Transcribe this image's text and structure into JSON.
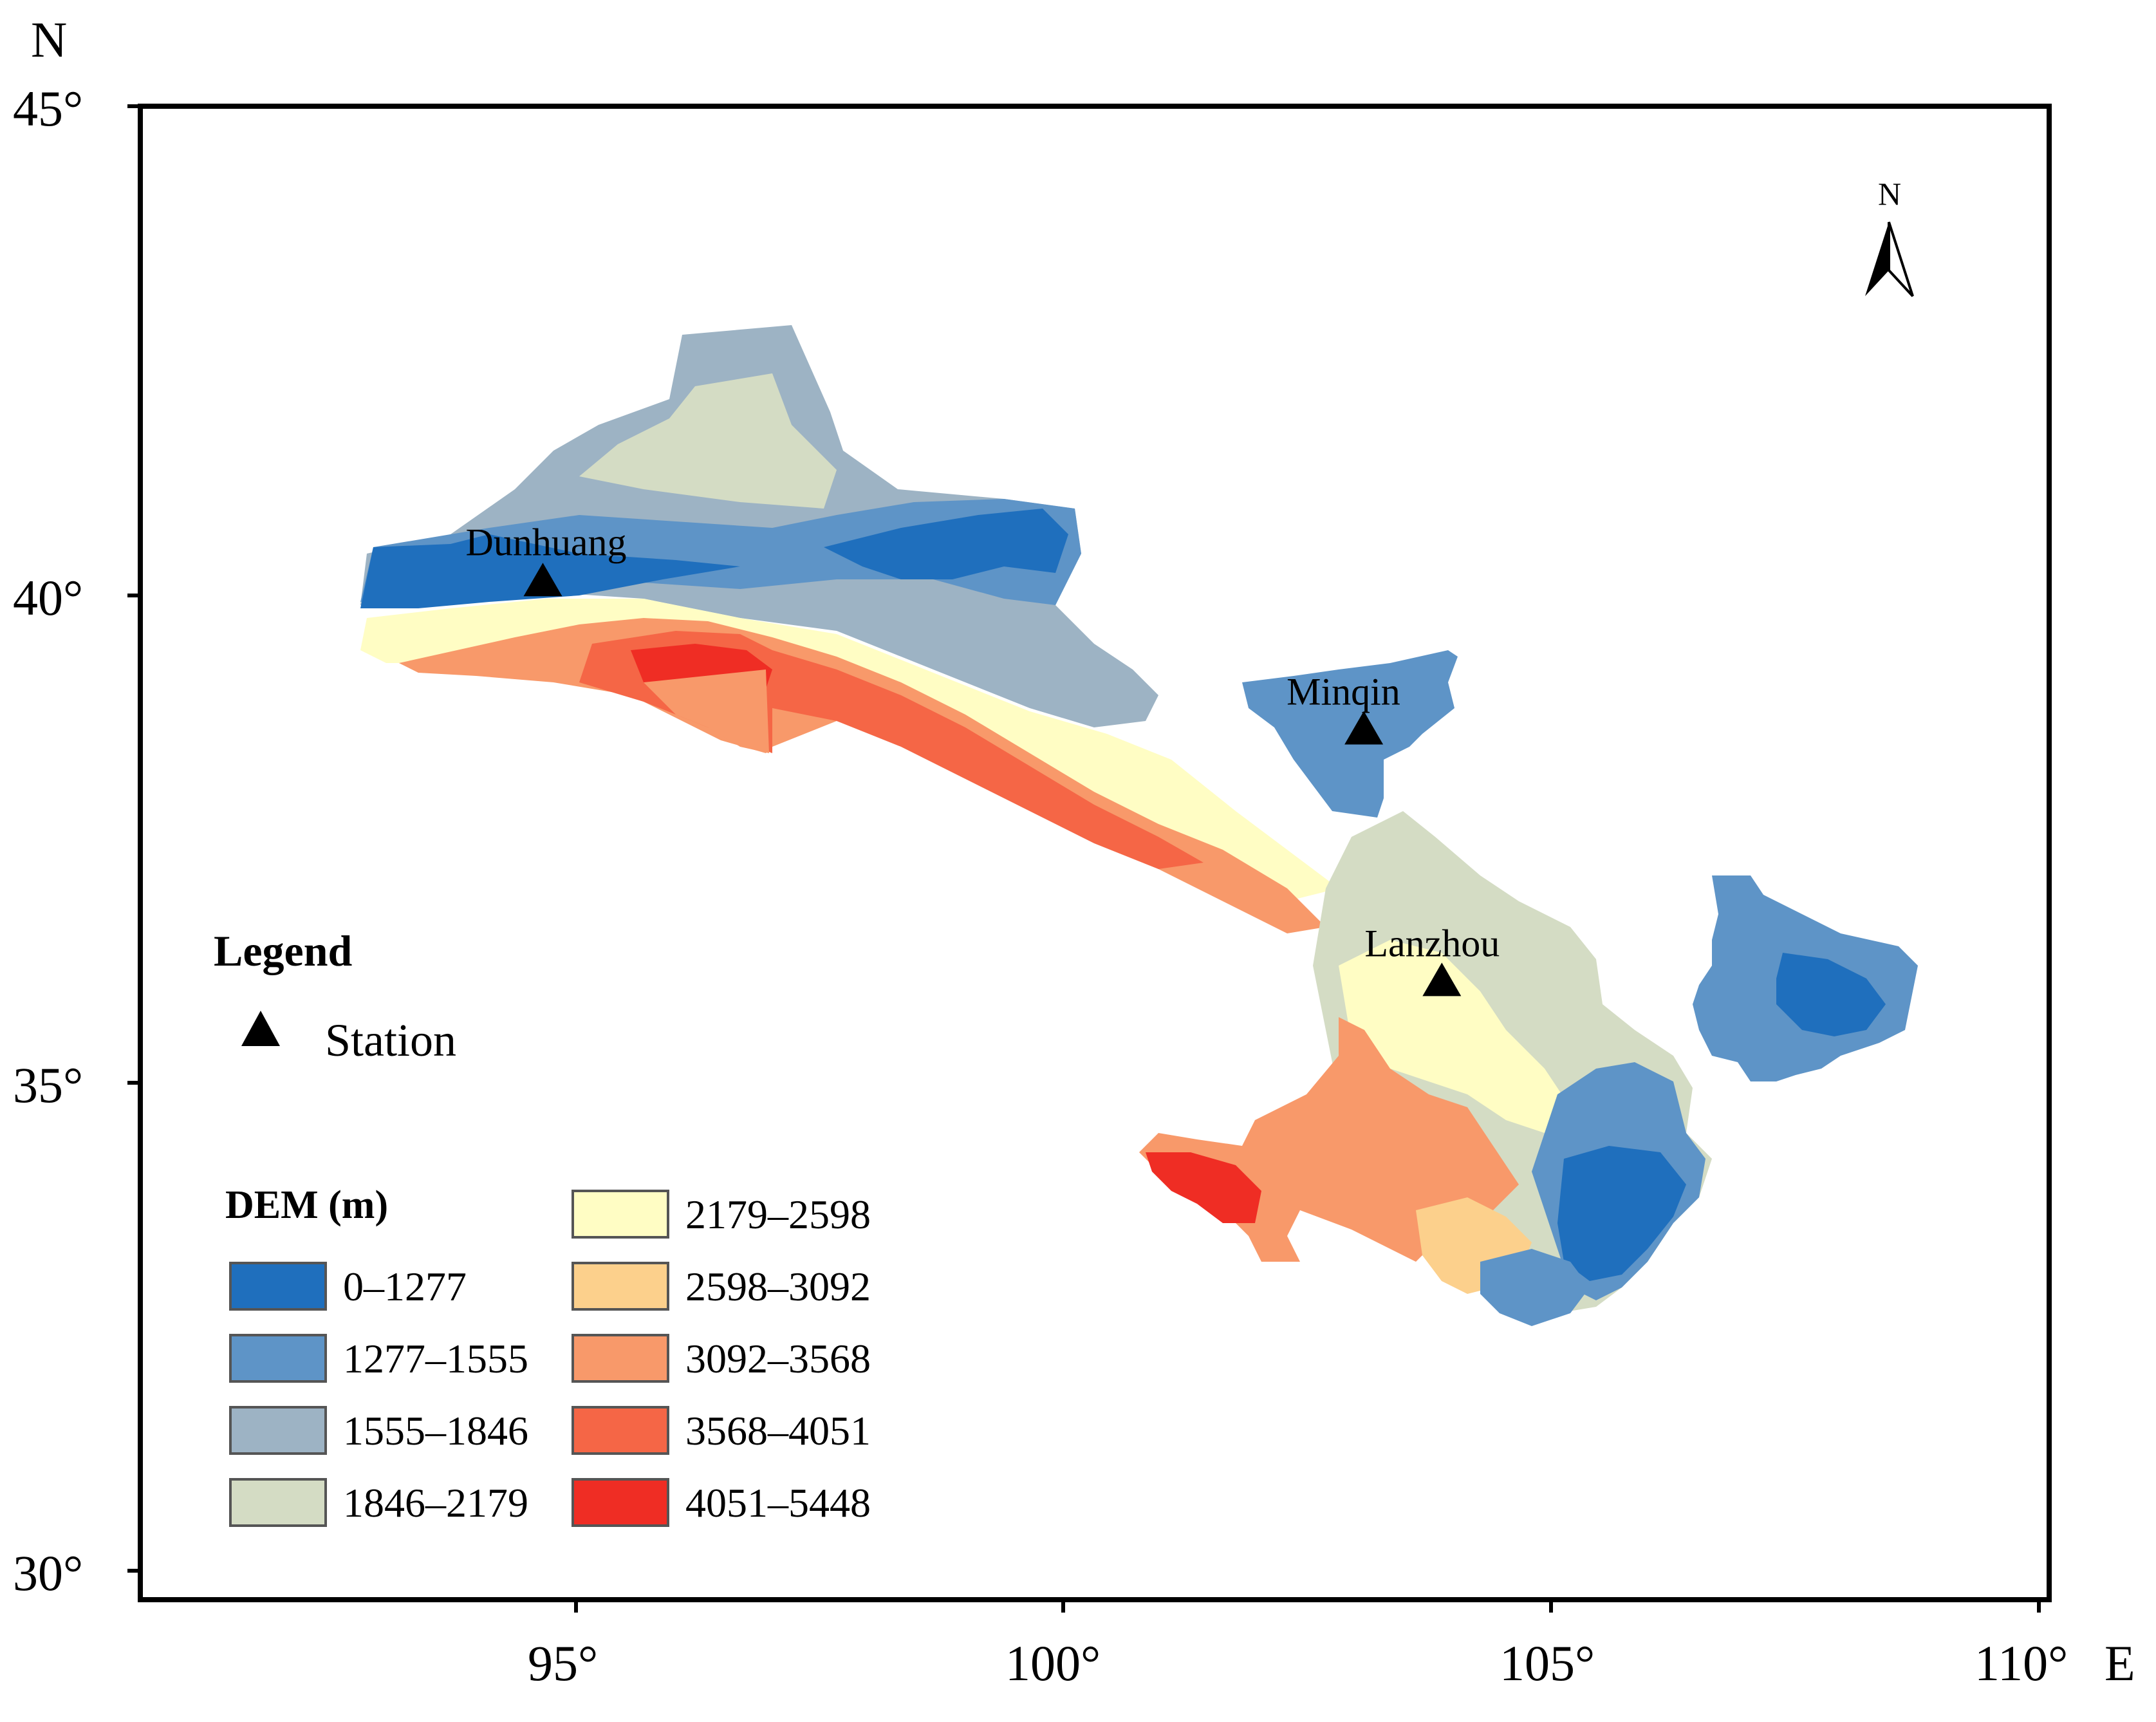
{
  "map": {
    "axis": {
      "north_label": "N",
      "east_label": "E",
      "lon_ticks": [
        {
          "value": 95,
          "label": "95°"
        },
        {
          "value": 100,
          "label": "100°"
        },
        {
          "value": 105,
          "label": "105°"
        },
        {
          "value": 110,
          "label": "110°"
        }
      ],
      "lat_ticks": [
        {
          "value": 45,
          "label": "45°"
        },
        {
          "value": 40,
          "label": "40°"
        },
        {
          "value": 35,
          "label": "35°"
        },
        {
          "value": 30,
          "label": "30°"
        }
      ],
      "lon_range": [
        90,
        110
      ],
      "lat_range": [
        30,
        45
      ]
    },
    "north_arrow": {
      "label": "N",
      "icon": "north-arrow-icon"
    },
    "stations": [
      {
        "name": "Dunhuang",
        "lon": 94.66,
        "lat": 40.15
      },
      {
        "name": "Minqin",
        "lon": 103.08,
        "lat": 38.63
      },
      {
        "name": "Lanzhou",
        "lon": 103.88,
        "lat": 36.05
      }
    ],
    "legend": {
      "title": "Legend",
      "station_label": "Station",
      "dem_title": "DEM (m)",
      "classes": [
        {
          "label": "0–1277",
          "color": "#1f6fbd"
        },
        {
          "label": "1277–1555",
          "color": "#5e94c7"
        },
        {
          "label": "1555–1846",
          "color": "#9db3c4"
        },
        {
          "label": "1846–2179",
          "color": "#d4dcc4"
        },
        {
          "label": "2179–2598",
          "color": "#fffdc4"
        },
        {
          "label": "2598–3092",
          "color": "#fcd08c"
        },
        {
          "label": "3092–3568",
          "color": "#f8996a"
        },
        {
          "label": "3568–4051",
          "color": "#f56646"
        },
        {
          "label": "4051–5448",
          "color": "#ef2d24"
        }
      ]
    }
  }
}
